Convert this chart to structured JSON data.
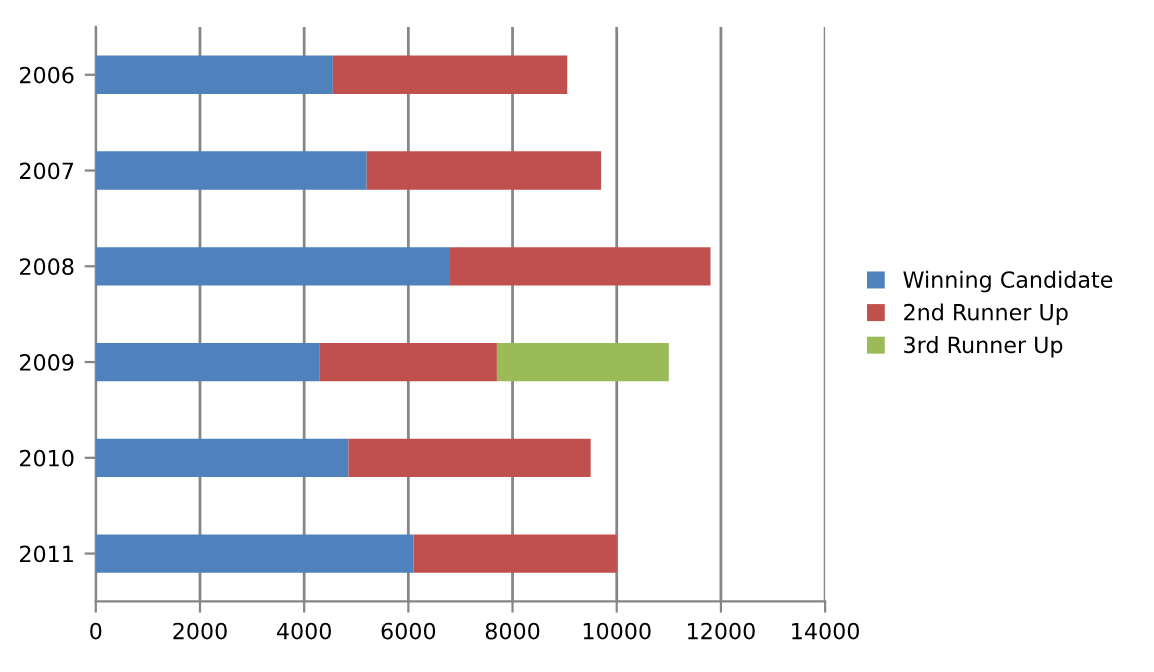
{
  "chart_data": {
    "type": "bar",
    "orientation": "horizontal",
    "stacked": true,
    "categories": [
      "2006",
      "2007",
      "2008",
      "2009",
      "2010",
      "2011"
    ],
    "series": [
      {
        "name": "Winning Candidate",
        "color": "#4f81bd",
        "values": [
          4550,
          5200,
          6800,
          4300,
          4850,
          6100
        ]
      },
      {
        "name": "2nd Runner Up",
        "color": "#c0504d",
        "values": [
          4500,
          4500,
          5000,
          3400,
          4650,
          3900
        ]
      },
      {
        "name": "3rd Runner Up",
        "color": "#9bbb59",
        "values": [
          null,
          null,
          null,
          3300,
          null,
          null
        ]
      }
    ],
    "xlim": [
      0,
      14000
    ],
    "xticks": [
      0,
      2000,
      4000,
      6000,
      8000,
      10000,
      12000,
      14000
    ],
    "grid": "x",
    "legend": "right"
  }
}
